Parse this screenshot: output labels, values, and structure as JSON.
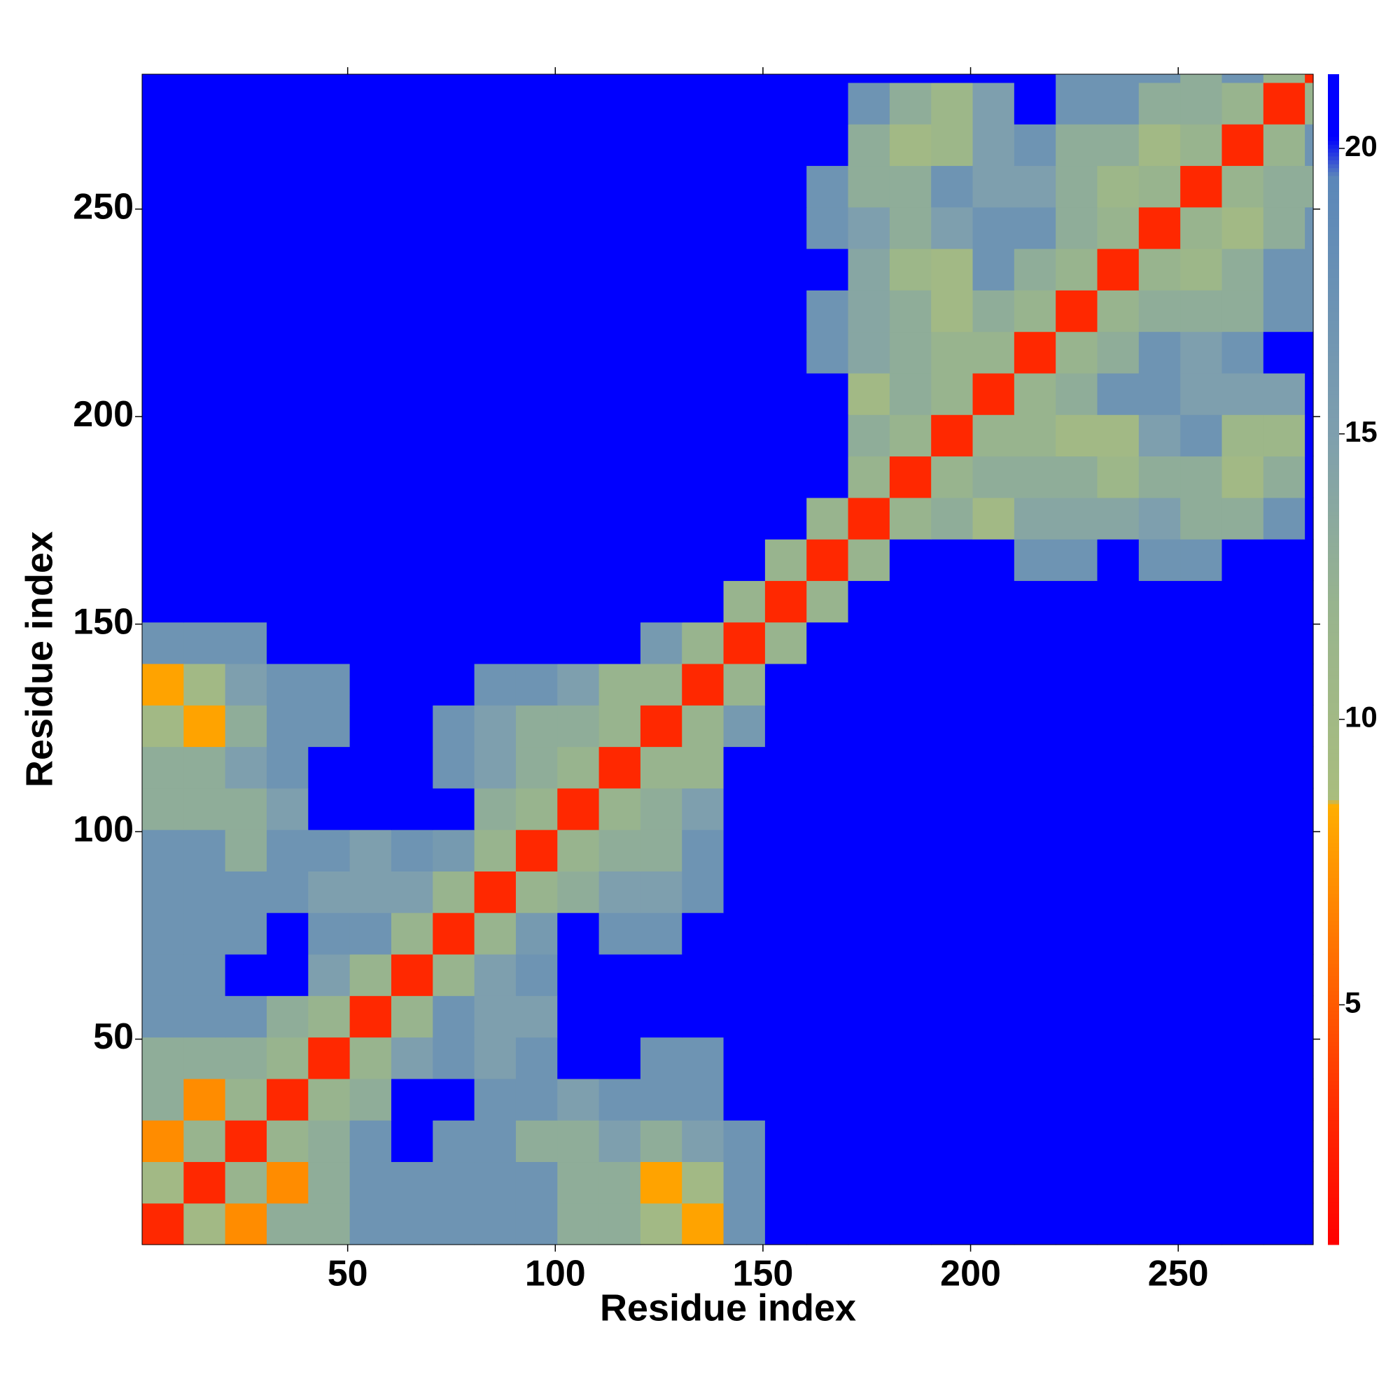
{
  "chart_data": {
    "type": "heatmap",
    "xlabel": "Residue index",
    "ylabel": "Residue index",
    "xlim": [
      0.5,
      282.5
    ],
    "ylim": [
      0.5,
      282.5
    ],
    "xticks": [
      50,
      100,
      150,
      200,
      250
    ],
    "yticks": [
      50,
      100,
      150,
      200,
      250
    ],
    "zlim": [
      0.8,
      21.3
    ],
    "zticks": [
      5,
      10,
      15,
      20
    ],
    "colorscale": [
      [
        0.8,
        "#ff0000"
      ],
      [
        3,
        "#ff2800"
      ],
      [
        5,
        "#ff5a00"
      ],
      [
        7,
        "#ff8c00"
      ],
      [
        8.5,
        "#ffae00"
      ],
      [
        8.6,
        "#a9bd7e"
      ],
      [
        12,
        "#98b48e"
      ],
      [
        15,
        "#7e9fae"
      ],
      [
        19.5,
        "#5b87b9"
      ],
      [
        20.2,
        "#0000ff"
      ],
      [
        21.3,
        "#0000ff"
      ]
    ],
    "bins": [
      0.5,
      10.5,
      20.5,
      30.5,
      40.5,
      50.5,
      60.5,
      70.5,
      80.5,
      90.5,
      100.5,
      110.5,
      120.5,
      130.5,
      140.5,
      150.5,
      160.5,
      170.5,
      180.5,
      190.5,
      200.5,
      210.5,
      220.5,
      230.5,
      240.5,
      250.5,
      260.5,
      270.5,
      280.5,
      282.5
    ],
    "z": [
      [
        3,
        10,
        7,
        13,
        13,
        17,
        17,
        17,
        17,
        17,
        13,
        13,
        10,
        8,
        17,
        21,
        21,
        21,
        21,
        21,
        21,
        21,
        21,
        21,
        21,
        21,
        21,
        21,
        21
      ],
      [
        10,
        3,
        12,
        7,
        13,
        17,
        17,
        17,
        17,
        17,
        13,
        13,
        8,
        10,
        17,
        21,
        21,
        21,
        21,
        21,
        21,
        21,
        21,
        21,
        21,
        21,
        21,
        21,
        21
      ],
      [
        7,
        12,
        3,
        12,
        13,
        17,
        21,
        17,
        17,
        13,
        13,
        15,
        13,
        15,
        17,
        21,
        21,
        21,
        21,
        21,
        21,
        21,
        21,
        21,
        21,
        21,
        21,
        21,
        21
      ],
      [
        13,
        7,
        12,
        3,
        12,
        13,
        21,
        21,
        17,
        17,
        15,
        17,
        17,
        17,
        21,
        21,
        21,
        21,
        21,
        21,
        21,
        21,
        21,
        21,
        21,
        21,
        21,
        21,
        21
      ],
      [
        13,
        13,
        13,
        12,
        3,
        12,
        15,
        17,
        15,
        17,
        21,
        21,
        17,
        17,
        21,
        21,
        21,
        21,
        21,
        21,
        21,
        21,
        21,
        21,
        21,
        21,
        21,
        21,
        21
      ],
      [
        17,
        17,
        17,
        13,
        12,
        3,
        12,
        17,
        15,
        15,
        21,
        21,
        21,
        21,
        21,
        21,
        21,
        21,
        21,
        21,
        21,
        21,
        21,
        21,
        21,
        21,
        21,
        21,
        21
      ],
      [
        17,
        17,
        21,
        21,
        15,
        12,
        3,
        12,
        15,
        17,
        21,
        21,
        21,
        21,
        21,
        21,
        21,
        21,
        21,
        21,
        21,
        21,
        21,
        21,
        21,
        21,
        21,
        21,
        21
      ],
      [
        17,
        17,
        17,
        21,
        17,
        17,
        12,
        3,
        12,
        16,
        21,
        17,
        17,
        21,
        21,
        21,
        21,
        21,
        21,
        21,
        21,
        21,
        21,
        21,
        21,
        21,
        21,
        21,
        21
      ],
      [
        17,
        17,
        17,
        17,
        15,
        15,
        15,
        12,
        3,
        12,
        13,
        15,
        15,
        17,
        21,
        21,
        21,
        21,
        21,
        21,
        21,
        21,
        21,
        21,
        21,
        21,
        21,
        21,
        21
      ],
      [
        17,
        17,
        13,
        17,
        17,
        15,
        17,
        16,
        12,
        3,
        12,
        13,
        13,
        17,
        21,
        21,
        21,
        21,
        21,
        21,
        21,
        21,
        21,
        21,
        21,
        21,
        21,
        21,
        21
      ],
      [
        13,
        13,
        13,
        15,
        21,
        21,
        21,
        21,
        13,
        12,
        3,
        12,
        13,
        15,
        21,
        21,
        21,
        21,
        21,
        21,
        21,
        21,
        21,
        21,
        21,
        21,
        21,
        21,
        21
      ],
      [
        13,
        13,
        15,
        17,
        21,
        21,
        21,
        17,
        15,
        13,
        12,
        3,
        12,
        12,
        21,
        21,
        21,
        21,
        21,
        21,
        21,
        21,
        21,
        21,
        21,
        21,
        21,
        21,
        21
      ],
      [
        10,
        8,
        13,
        17,
        17,
        21,
        21,
        17,
        15,
        13,
        13,
        12,
        3,
        12,
        16,
        21,
        21,
        21,
        21,
        21,
        21,
        21,
        21,
        21,
        21,
        21,
        21,
        21,
        21
      ],
      [
        8,
        10,
        15,
        17,
        17,
        21,
        21,
        21,
        17,
        17,
        15,
        12,
        12,
        3,
        12,
        21,
        21,
        21,
        21,
        21,
        21,
        21,
        21,
        21,
        21,
        21,
        21,
        21,
        21
      ],
      [
        17,
        17,
        17,
        21,
        21,
        21,
        21,
        21,
        21,
        21,
        21,
        21,
        16,
        12,
        3,
        12,
        21,
        21,
        21,
        21,
        21,
        21,
        21,
        21,
        21,
        21,
        21,
        21,
        21
      ],
      [
        21,
        21,
        21,
        21,
        21,
        21,
        21,
        21,
        21,
        21,
        21,
        21,
        21,
        21,
        12,
        3,
        12,
        21,
        21,
        21,
        21,
        21,
        21,
        21,
        21,
        21,
        21,
        21,
        21
      ],
      [
        21,
        21,
        21,
        21,
        21,
        21,
        21,
        21,
        21,
        21,
        21,
        21,
        21,
        21,
        21,
        12,
        3,
        12,
        21,
        21,
        21,
        17,
        17,
        21,
        17,
        17,
        21,
        21,
        21
      ],
      [
        21,
        21,
        21,
        21,
        21,
        21,
        21,
        21,
        21,
        21,
        21,
        21,
        21,
        21,
        21,
        21,
        12,
        3,
        12,
        13,
        10,
        14,
        14,
        14,
        15,
        13,
        13,
        17,
        21
      ],
      [
        21,
        21,
        21,
        21,
        21,
        21,
        21,
        21,
        21,
        21,
        21,
        21,
        21,
        21,
        21,
        21,
        21,
        12,
        3,
        12,
        13,
        13,
        13,
        11,
        13,
        13,
        10,
        13,
        21
      ],
      [
        21,
        21,
        21,
        21,
        21,
        21,
        21,
        21,
        21,
        21,
        21,
        21,
        21,
        21,
        21,
        21,
        21,
        13,
        12,
        3,
        12,
        12,
        10,
        10,
        15,
        17,
        11,
        11,
        21
      ],
      [
        21,
        21,
        21,
        21,
        21,
        21,
        21,
        21,
        21,
        21,
        21,
        21,
        21,
        21,
        21,
        21,
        21,
        10,
        13,
        12,
        3,
        12,
        13,
        17,
        17,
        15,
        15,
        15,
        21
      ],
      [
        21,
        21,
        21,
        21,
        21,
        21,
        21,
        21,
        21,
        21,
        21,
        21,
        21,
        21,
        21,
        21,
        17,
        14,
        13,
        12,
        12,
        3,
        12,
        13,
        17,
        15,
        17,
        21,
        21
      ],
      [
        21,
        21,
        21,
        21,
        21,
        21,
        21,
        21,
        21,
        21,
        21,
        21,
        21,
        21,
        21,
        21,
        17,
        14,
        13,
        10,
        13,
        12,
        3,
        12,
        13,
        13,
        13,
        17,
        17
      ],
      [
        21,
        21,
        21,
        21,
        21,
        21,
        21,
        21,
        21,
        21,
        21,
        21,
        21,
        21,
        21,
        21,
        21,
        14,
        11,
        10,
        17,
        13,
        12,
        3,
        12,
        11,
        13,
        17,
        17
      ],
      [
        21,
        21,
        21,
        21,
        21,
        21,
        21,
        21,
        21,
        21,
        21,
        21,
        21,
        21,
        21,
        21,
        17,
        15,
        13,
        15,
        17,
        17,
        13,
        12,
        3,
        12,
        10,
        13,
        17
      ],
      [
        21,
        21,
        21,
        21,
        21,
        21,
        21,
        21,
        21,
        21,
        21,
        21,
        21,
        21,
        21,
        21,
        17,
        13,
        13,
        17,
        15,
        15,
        13,
        11,
        12,
        3,
        12,
        13,
        13
      ],
      [
        21,
        21,
        21,
        21,
        21,
        21,
        21,
        21,
        21,
        21,
        21,
        21,
        21,
        21,
        21,
        21,
        21,
        13,
        10,
        11,
        15,
        17,
        13,
        13,
        10,
        12,
        3,
        12,
        17
      ],
      [
        21,
        21,
        21,
        21,
        21,
        21,
        21,
        21,
        21,
        21,
        21,
        21,
        21,
        21,
        21,
        21,
        21,
        17,
        13,
        11,
        15,
        21,
        17,
        17,
        13,
        13,
        12,
        3,
        12
      ],
      [
        21,
        21,
        21,
        21,
        21,
        21,
        21,
        21,
        21,
        21,
        21,
        21,
        21,
        21,
        21,
        21,
        21,
        21,
        21,
        21,
        21,
        21,
        17,
        17,
        17,
        13,
        17,
        12,
        3
      ]
    ]
  }
}
